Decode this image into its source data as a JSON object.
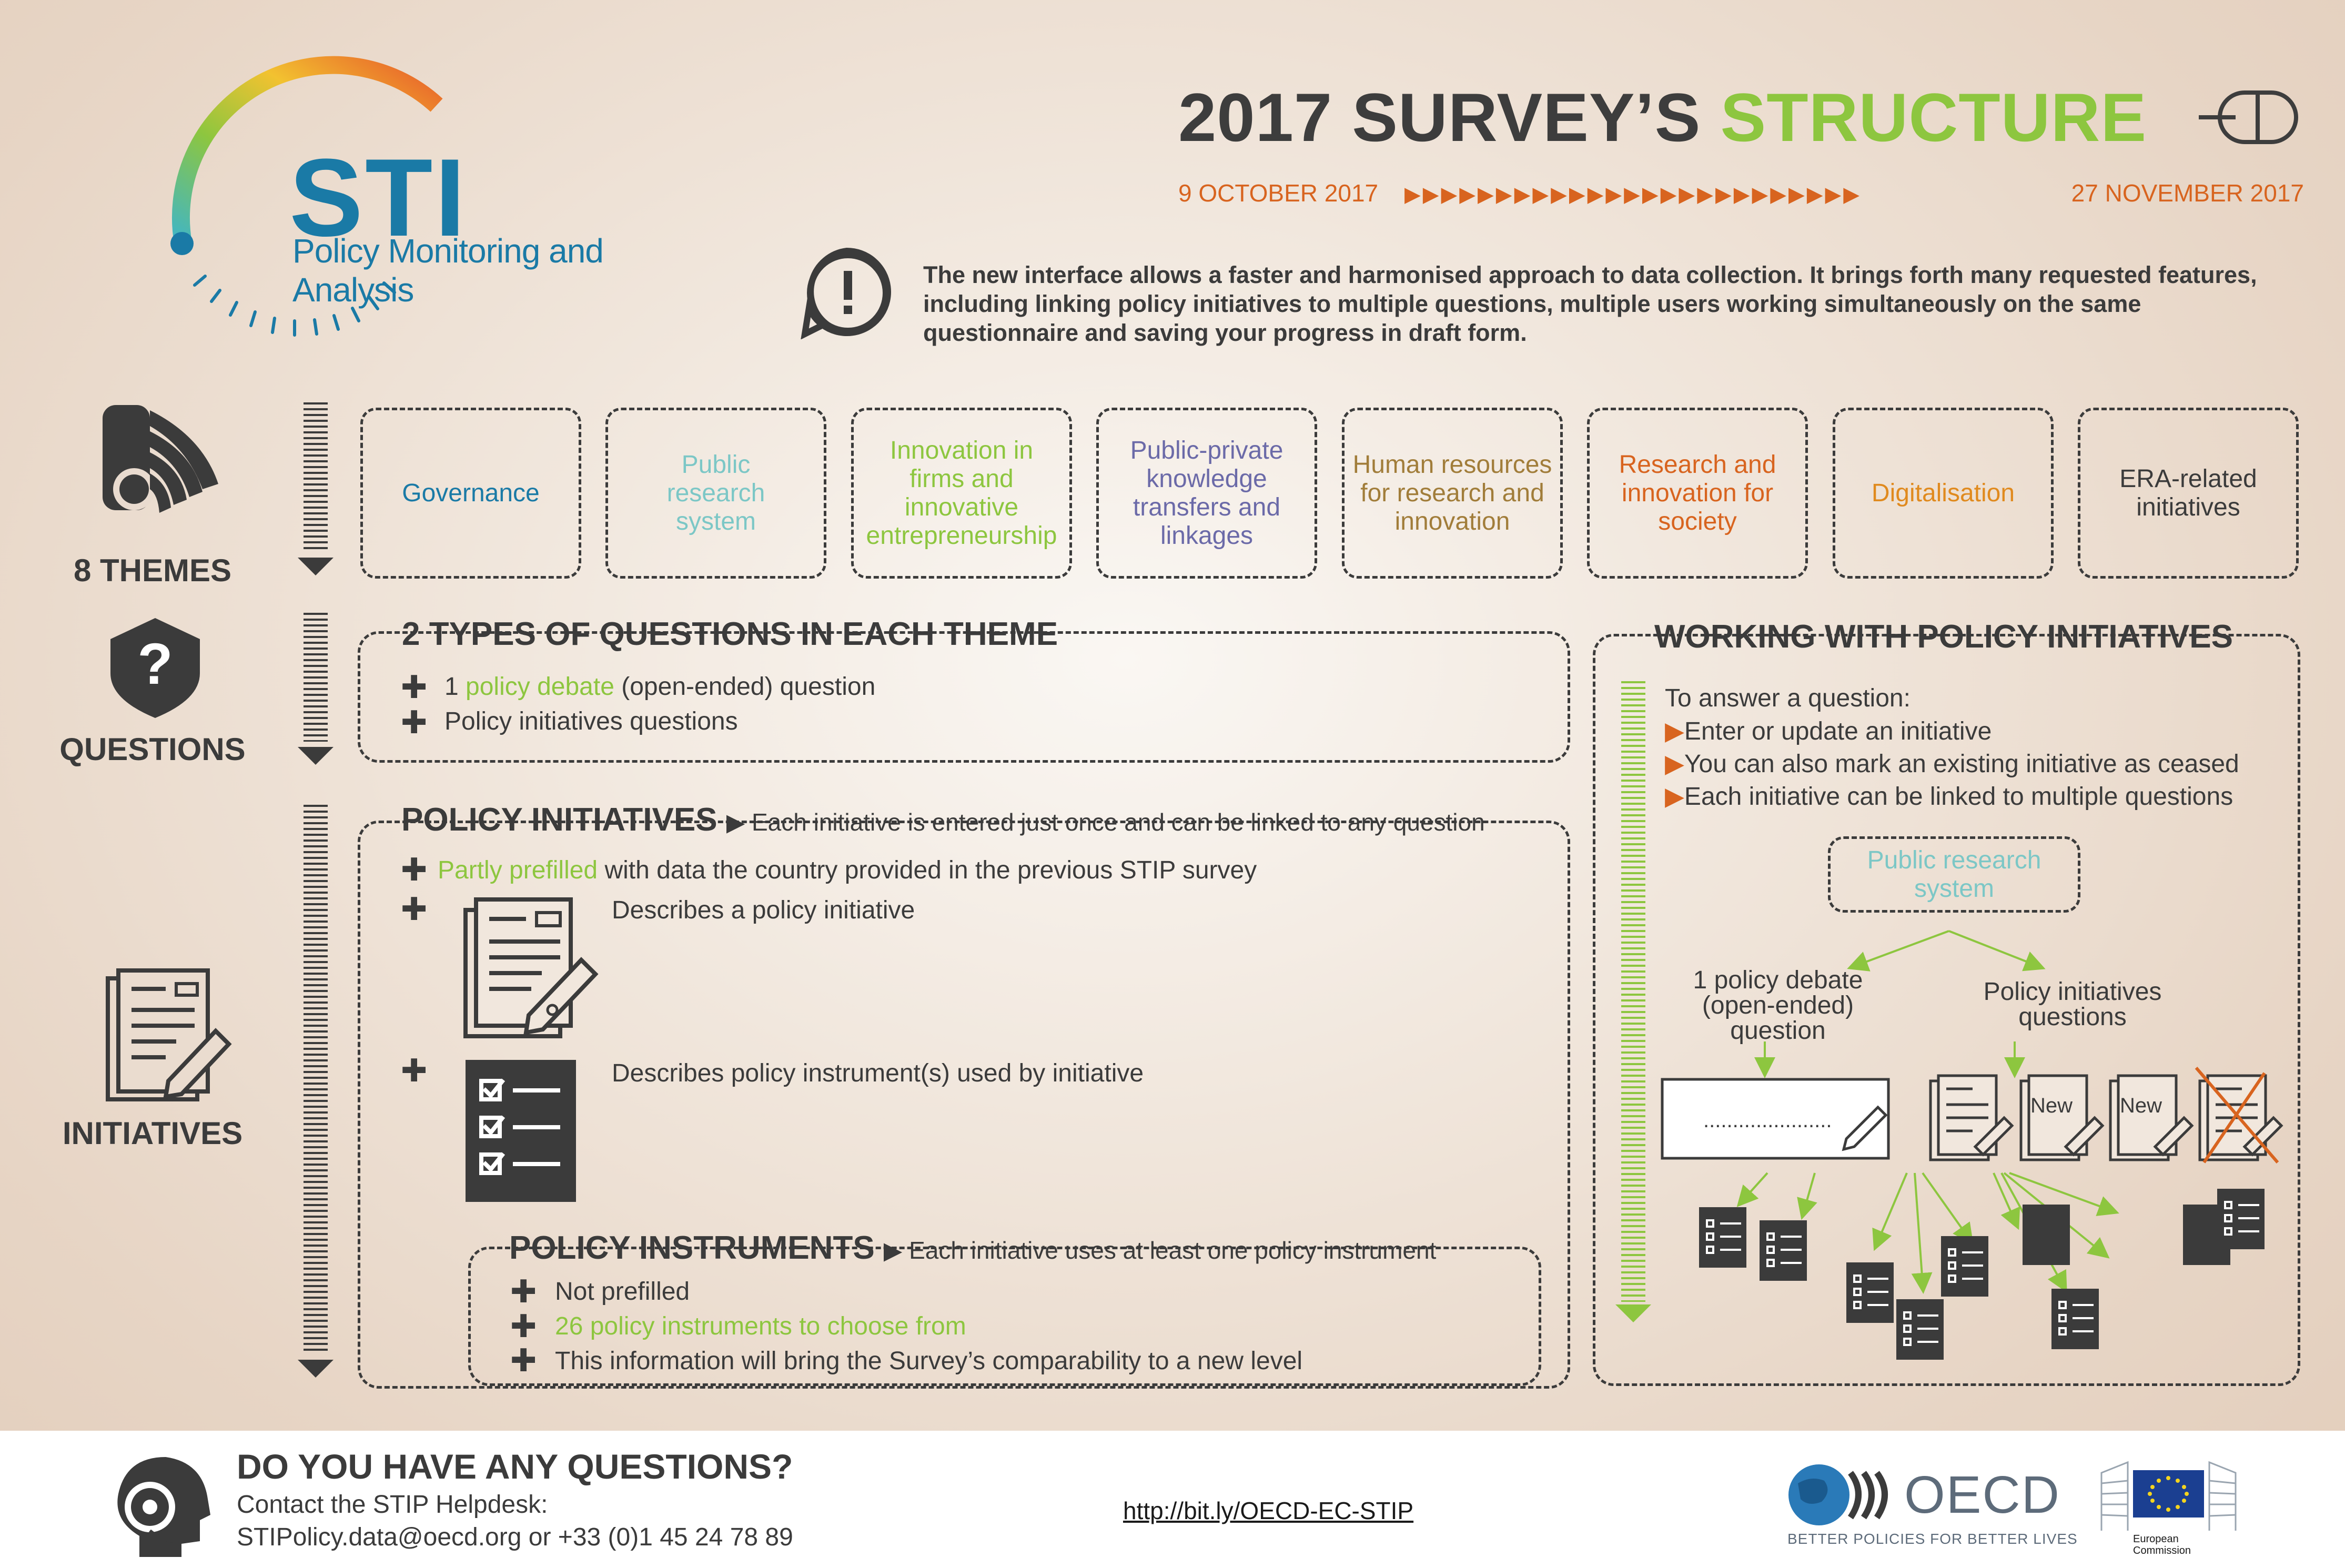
{
  "logo": {
    "acronym": "STI",
    "subtitle": "Policy Monitoring and Analysis"
  },
  "header": {
    "title_part1": "2017 SURVEY’S ",
    "title_part2": "STRUCTURE",
    "date_start": "9 OCTOBER 2017",
    "date_end": "27 NOVEMBER 2017",
    "date_arrows": "▶▶▶▶▶▶▶▶▶▶▶▶▶▶▶▶▶▶▶▶▶▶▶▶▶",
    "notice": "The new interface allows a faster and harmonised approach to data collection. It brings forth many requested features, including linking policy initiatives to multiple questions, multiple users working simultaneously on the same questionnaire and saving your progress in draft form."
  },
  "side": {
    "themes_label": "8 THEMES",
    "questions_label": "QUESTIONS",
    "initiatives_label": "INITIATIVES"
  },
  "themes": [
    {
      "label": "Governance",
      "color": "#1a7aa6"
    },
    {
      "label": "Public research system",
      "color": "#7cc7c6"
    },
    {
      "label": "Innovation in firms and innovative entrepreneurship",
      "color": "#8dc63f"
    },
    {
      "label": "Public-private knowledge transfers and linkages",
      "color": "#6b6aa8"
    },
    {
      "label": "Human resources for research and innovation",
      "color": "#a17d3a"
    },
    {
      "label": "Research and innovation for society",
      "color": "#d8641f"
    },
    {
      "label": "Digitalisation",
      "color": "#e08a1e"
    },
    {
      "label": "ERA-related initiatives",
      "color": "#3b3b3b"
    }
  ],
  "questions_panel": {
    "title": "2 TYPES OF QUESTIONS IN EACH THEME",
    "line1_pre": "1 ",
    "line1_green": "policy debate",
    "line1_post": " (open-ended) question",
    "line2": "Policy initiatives questions"
  },
  "initiatives_panel": {
    "title": "POLICY INITIATIVES",
    "subtitle": "Each initiative is entered just once and can be linked to any question",
    "line1_green": "Partly prefilled",
    "line1_post": " with data the country provided in the previous STIP survey",
    "line2": "Describes a policy initiative",
    "line3": "Describes policy instrument(s) used by initiative"
  },
  "instruments_panel": {
    "title": "POLICY INSTRUMENTS",
    "subtitle": "Each initiative uses at least one policy instrument",
    "line1": "Not prefilled",
    "line2": "26 policy instruments to choose from",
    "line3": "This information will bring the Survey’s comparability to a new level"
  },
  "working_panel": {
    "title": "WORKING WITH POLICY INITIATIVES",
    "intro": "To answer a question:",
    "bullets": [
      "Enter or update an initiative",
      "You can also mark an existing initiative as ceased",
      "Each initiative can be linked to multiple questions"
    ],
    "theme_box": "Public research system",
    "debate_label": "1 policy debate (open-ended) question",
    "initiatives_label": "Policy initiatives questions",
    "debate_input": "......................",
    "new_label": "New"
  },
  "footer": {
    "title": "DO YOU HAVE ANY QUESTIONS?",
    "contact_line1": "Contact the STIP Helpdesk:",
    "contact_line2": "STIPolicy.data@oecd.org or +33 (0)1 45 24 78 89",
    "link": "http://bit.ly/OECD-EC-STIP",
    "oecd": "OECD",
    "oecd_tagline": "BETTER POLICIES FOR BETTER LIVES",
    "ec_line1": "European",
    "ec_line2": "Commission"
  },
  "colors": {
    "text": "#3b3b3b",
    "green": "#8dc63f",
    "orange": "#d8641f",
    "blue": "#1a7aa6"
  }
}
